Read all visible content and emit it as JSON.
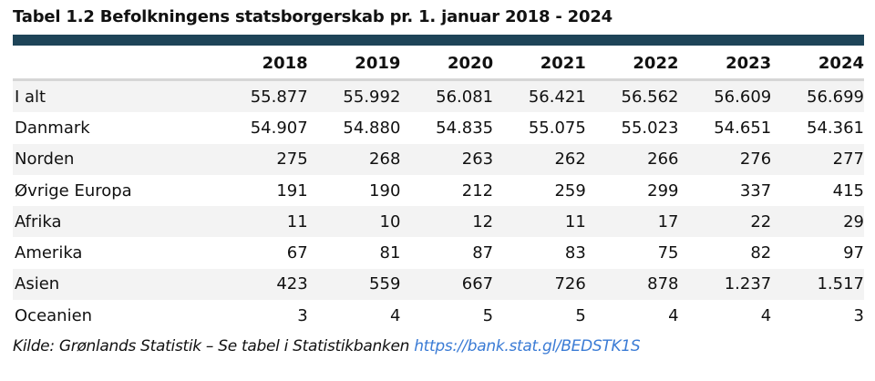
{
  "title": "Tabel 1.2 Befolkningens statsborgerskab pr. 1. januar 2018 - 2024",
  "colors": {
    "header_bar": "#1e4458",
    "link": "#3a7bd5",
    "stripe": "#f3f3f3"
  },
  "table": {
    "columns": [
      "",
      "2018",
      "2019",
      "2020",
      "2021",
      "2022",
      "2023",
      "2024"
    ],
    "rows": [
      [
        "I alt",
        "55.877",
        "55.992",
        "56.081",
        "56.421",
        "56.562",
        "56.609",
        "56.699"
      ],
      [
        "Danmark",
        "54.907",
        "54.880",
        "54.835",
        "55.075",
        "55.023",
        "54.651",
        "54.361"
      ],
      [
        "Norden",
        "275",
        "268",
        "263",
        "262",
        "266",
        "276",
        "277"
      ],
      [
        "Øvrige Europa",
        "191",
        "190",
        "212",
        "259",
        "299",
        "337",
        "415"
      ],
      [
        "Afrika",
        "11",
        "10",
        "12",
        "11",
        "17",
        "22",
        "29"
      ],
      [
        "Amerika",
        "67",
        "81",
        "87",
        "83",
        "75",
        "82",
        "97"
      ],
      [
        "Asien",
        "423",
        "559",
        "667",
        "726",
        "878",
        "1.237",
        "1.517"
      ],
      [
        "Oceanien",
        "3",
        "4",
        "5",
        "5",
        "4",
        "4",
        "3"
      ]
    ]
  },
  "footnote": {
    "text": "Kilde: Grønlands Statistik – Se tabel i Statistikbanken ",
    "link": "https://bank.stat.gl/BEDSTK1S"
  }
}
